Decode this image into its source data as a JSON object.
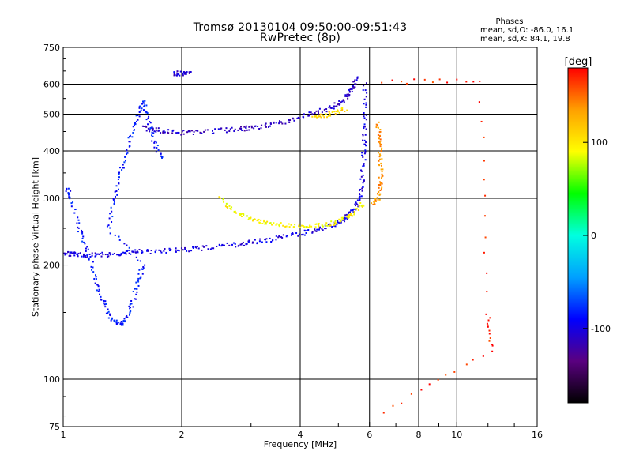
{
  "chart_data": {
    "type": "scatter",
    "title_line1": "Tromsø 20130104 09:50:00-09:51:43",
    "title_line2": "RwPretec (8p)",
    "xlabel": "Frequency [MHz]",
    "ylabel": "Stationary phase Virtual Height [km]",
    "x_scale": "log",
    "y_scale": "log",
    "xlim": [
      1,
      16
    ],
    "ylim": [
      75,
      750
    ],
    "x_ticks": [
      1,
      2,
      4,
      6,
      8,
      10,
      16
    ],
    "x_tick_labels": [
      "1",
      "2",
      "4",
      "6",
      "8",
      "10",
      "16"
    ],
    "x_grid": [
      2,
      4,
      6,
      8,
      10
    ],
    "y_ticks": [
      75,
      100,
      200,
      300,
      400,
      500,
      600,
      750
    ],
    "y_tick_labels": [
      "75",
      "100",
      "200",
      "300",
      "400",
      "500",
      "600",
      "750"
    ],
    "y_grid": [
      100,
      200,
      300,
      400,
      500,
      600
    ],
    "grid": true,
    "legend": {
      "heading": "Phases",
      "line1": "mean, sd,O: -86.0, 16.1",
      "line2": "mean, sd,X:  84.1, 19.8",
      "placement": "top-right"
    },
    "colorbar": {
      "label": "[deg]",
      "range": [
        -180,
        180
      ],
      "ticks": [
        100,
        0,
        -100
      ],
      "tick_labels": [
        "100",
        "0",
        "-100"
      ],
      "colormap": [
        "#000000",
        "#5a0080",
        "#0000ff",
        "#00a0ff",
        "#00ffe0",
        "#00ff00",
        "#ffff00",
        "#ffa000",
        "#ff0000"
      ]
    },
    "series": [
      {
        "phase": -100,
        "points": [
          [
            1.0,
            215
          ],
          [
            1.05,
            214
          ],
          [
            1.1,
            213
          ],
          [
            1.2,
            212
          ],
          [
            1.3,
            213
          ],
          [
            1.4,
            215
          ],
          [
            1.5,
            216
          ],
          [
            1.6,
            217
          ],
          [
            1.8,
            218
          ],
          [
            2.0,
            219
          ],
          [
            2.2,
            221
          ],
          [
            2.5,
            224
          ],
          [
            2.8,
            227
          ],
          [
            3.0,
            229
          ],
          [
            3.3,
            233
          ],
          [
            3.6,
            237
          ],
          [
            4.0,
            242
          ],
          [
            4.4,
            247
          ],
          [
            4.8,
            254
          ],
          [
            5.1,
            262
          ],
          [
            5.3,
            270
          ],
          [
            5.5,
            282
          ],
          [
            5.65,
            300
          ],
          [
            5.75,
            330
          ],
          [
            5.8,
            380
          ],
          [
            5.82,
            430
          ],
          [
            5.84,
            500
          ],
          [
            5.85,
            600
          ]
        ]
      },
      {
        "phase": -110,
        "points": [
          [
            1.6,
            460
          ],
          [
            1.7,
            455
          ],
          [
            1.8,
            450
          ],
          [
            2.0,
            447
          ],
          [
            2.2,
            449
          ],
          [
            2.5,
            452
          ],
          [
            2.8,
            456
          ],
          [
            3.0,
            460
          ],
          [
            3.3,
            467
          ],
          [
            3.6,
            476
          ],
          [
            4.0,
            490
          ],
          [
            4.4,
            505
          ],
          [
            4.8,
            520
          ],
          [
            5.1,
            540
          ],
          [
            5.3,
            560
          ],
          [
            5.45,
            590
          ],
          [
            5.55,
            620
          ]
        ]
      },
      {
        "phase": -85,
        "points": [
          [
            1.02,
            320
          ],
          [
            1.05,
            300
          ],
          [
            1.1,
            250
          ],
          [
            1.15,
            220
          ],
          [
            1.2,
            190
          ],
          [
            1.25,
            165
          ],
          [
            1.3,
            150
          ],
          [
            1.35,
            142
          ],
          [
            1.4,
            140
          ],
          [
            1.45,
            145
          ],
          [
            1.5,
            160
          ],
          [
            1.55,
            180
          ],
          [
            1.6,
            200
          ],
          [
            1.3,
            250
          ],
          [
            1.35,
            300
          ],
          [
            1.4,
            350
          ],
          [
            1.45,
            400
          ],
          [
            1.5,
            450
          ],
          [
            1.55,
            500
          ],
          [
            1.6,
            540
          ],
          [
            1.65,
            480
          ],
          [
            1.7,
            420
          ],
          [
            1.8,
            380
          ]
        ]
      },
      {
        "phase": 95,
        "points": [
          [
            2.5,
            300
          ],
          [
            2.7,
            280
          ],
          [
            2.9,
            268
          ],
          [
            3.1,
            262
          ],
          [
            3.3,
            258
          ],
          [
            3.6,
            255
          ],
          [
            4.0,
            253
          ],
          [
            4.4,
            255
          ],
          [
            4.8,
            258
          ],
          [
            5.2,
            265
          ],
          [
            5.5,
            275
          ],
          [
            5.8,
            290
          ]
        ]
      },
      {
        "phase": 110,
        "points": [
          [
            4.3,
            490
          ],
          [
            4.6,
            495
          ],
          [
            4.9,
            505
          ],
          [
            5.2,
            515
          ]
        ]
      },
      {
        "phase": 140,
        "points": [
          [
            6.3,
            470
          ],
          [
            6.35,
            430
          ],
          [
            6.4,
            390
          ],
          [
            6.42,
            350
          ],
          [
            6.4,
            320
          ],
          [
            6.3,
            300
          ],
          [
            6.1,
            290
          ]
        ]
      },
      {
        "phase": 170,
        "points": [
          [
            6.5,
            610
          ],
          [
            11.5,
            610
          ],
          [
            12.0,
            150
          ],
          [
            12.3,
            120
          ],
          [
            6.5,
            82
          ]
        ]
      },
      {
        "phase": -105,
        "points": [
          [
            1.9,
            640
          ],
          [
            2.0,
            640
          ],
          [
            2.1,
            640
          ]
        ]
      }
    ]
  }
}
